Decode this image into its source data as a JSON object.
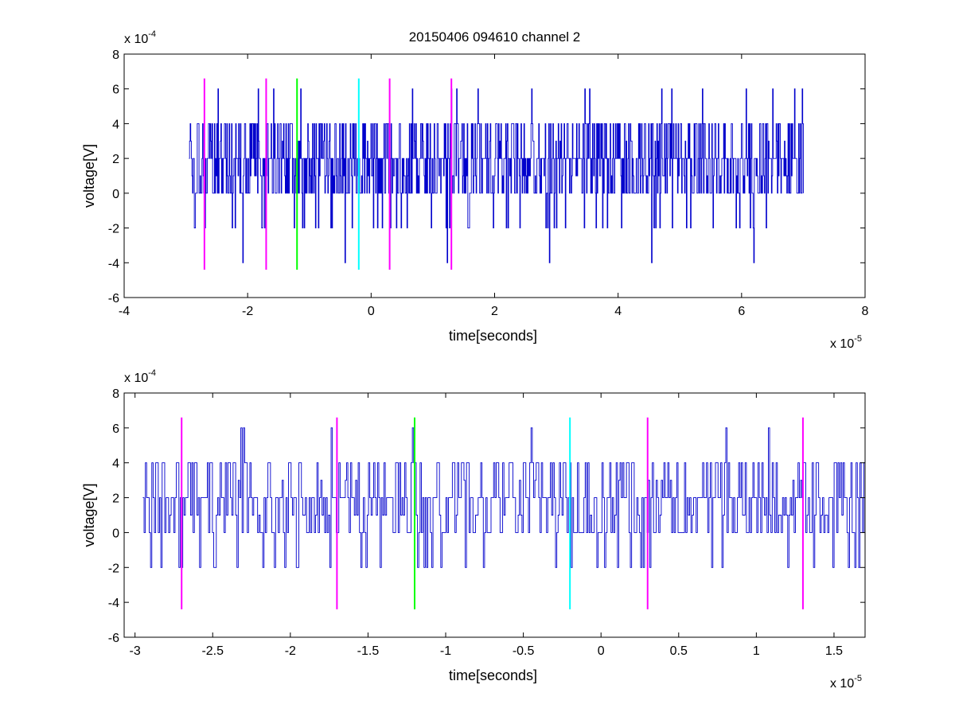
{
  "chart_data": [
    {
      "type": "line",
      "title": "20150406 094610 channel 2",
      "xlabel": "time[seconds]",
      "ylabel": "voltage[V]",
      "x_exponent_label": "x 10",
      "x_exponent_power": "-5",
      "y_exponent_label": "x 10",
      "y_exponent_power": "-4",
      "xlim": [
        -4,
        8
      ],
      "ylim": [
        -6,
        8
      ],
      "x_ticks": [
        -4,
        -2,
        0,
        2,
        4,
        6,
        8
      ],
      "x_tick_labels": [
        "-4",
        "-2",
        "0",
        "2",
        "4",
        "6",
        "8"
      ],
      "y_ticks": [
        -6,
        -4,
        -2,
        0,
        2,
        4,
        6,
        8
      ],
      "y_tick_labels": [
        "-6",
        "-4",
        "-2",
        "0",
        "2",
        "4",
        "6",
        "8"
      ],
      "signal": {
        "color": "#0000cc",
        "x_range": [
          -2.95,
          7.0
        ],
        "y_min": -4,
        "y_max": 6
      },
      "markers": [
        {
          "x": -2.7,
          "y_range": [
            -4.4,
            6.6
          ],
          "color": "#ff00ff"
        },
        {
          "x": -1.7,
          "y_range": [
            -4.4,
            6.6
          ],
          "color": "#ff00ff"
        },
        {
          "x": -1.2,
          "y_range": [
            -4.4,
            6.6
          ],
          "color": "#00ff00"
        },
        {
          "x": -0.2,
          "y_range": [
            -4.4,
            6.6
          ],
          "color": "#00ffff"
        },
        {
          "x": 0.3,
          "y_range": [
            -4.4,
            6.6
          ],
          "color": "#ff00ff"
        },
        {
          "x": 1.3,
          "y_range": [
            -4.4,
            6.6
          ],
          "color": "#ff00ff"
        }
      ]
    },
    {
      "type": "line",
      "title": "",
      "xlabel": "time[seconds]",
      "ylabel": "voltage[V]",
      "x_exponent_label": "x 10",
      "x_exponent_power": "-5",
      "y_exponent_label": "x 10",
      "y_exponent_power": "-4",
      "xlim": [
        -3.07,
        1.7
      ],
      "ylim": [
        -6,
        8
      ],
      "x_ticks": [
        -3,
        -2.5,
        -2,
        -1.5,
        -1,
        -0.5,
        0,
        0.5,
        1,
        1.5
      ],
      "x_tick_labels": [
        "-3",
        "-2.5",
        "-2",
        "-1.5",
        "-1",
        "-0.5",
        "0",
        "0.5",
        "1",
        "1.5"
      ],
      "y_ticks": [
        -6,
        -4,
        -2,
        0,
        2,
        4,
        6,
        8
      ],
      "y_tick_labels": [
        "-6",
        "-4",
        "-2",
        "0",
        "2",
        "4",
        "6",
        "8"
      ],
      "signal": {
        "color": "#0000cc",
        "x_range": [
          -2.95,
          1.7
        ],
        "y_min": -2,
        "y_max": 6
      },
      "markers": [
        {
          "x": -2.7,
          "y_range": [
            -4.4,
            6.6
          ],
          "color": "#ff00ff"
        },
        {
          "x": -1.7,
          "y_range": [
            -4.4,
            6.6
          ],
          "color": "#ff00ff"
        },
        {
          "x": -1.2,
          "y_range": [
            -4.4,
            6.6
          ],
          "color": "#00ff00"
        },
        {
          "x": -0.2,
          "y_range": [
            -4.4,
            6.6
          ],
          "color": "#00ffff"
        },
        {
          "x": 0.3,
          "y_range": [
            -4.4,
            6.6
          ],
          "color": "#ff00ff"
        },
        {
          "x": 1.3,
          "y_range": [
            -4.4,
            6.6
          ],
          "color": "#ff00ff"
        }
      ]
    }
  ]
}
